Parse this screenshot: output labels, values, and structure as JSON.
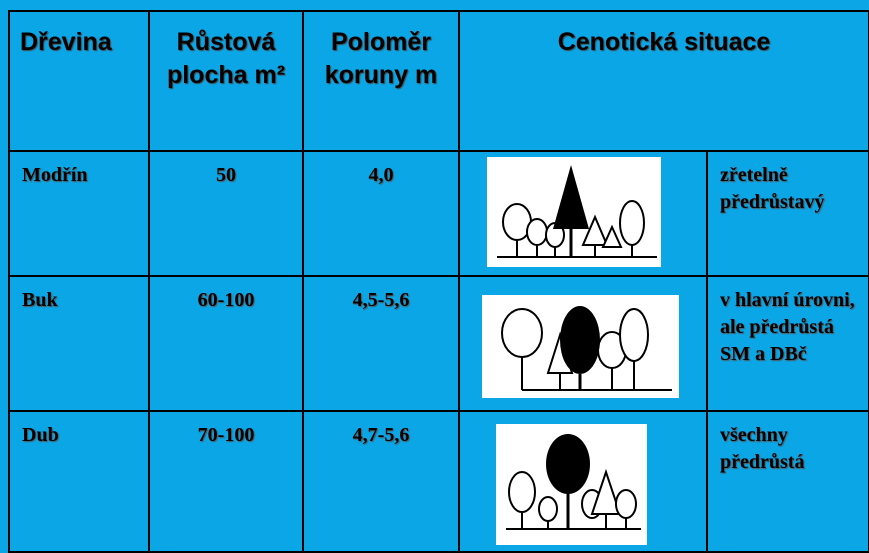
{
  "table": {
    "header": [
      "Dřevina",
      "Růstová plocha m²",
      "Poloměr koruny m",
      "Cenotická situace"
    ],
    "rows": [
      [
        "Modřín",
        "50",
        "4,0",
        "zřetelně předrůstavý"
      ],
      [
        "Buk",
        "60-100",
        "4,5-5,6",
        "v hlavní úrovni, ale předrůstá SM a DBč"
      ],
      [
        "Dub",
        "70-100",
        "4,7-5,6",
        "všechny předrůstá"
      ]
    ]
  }
}
